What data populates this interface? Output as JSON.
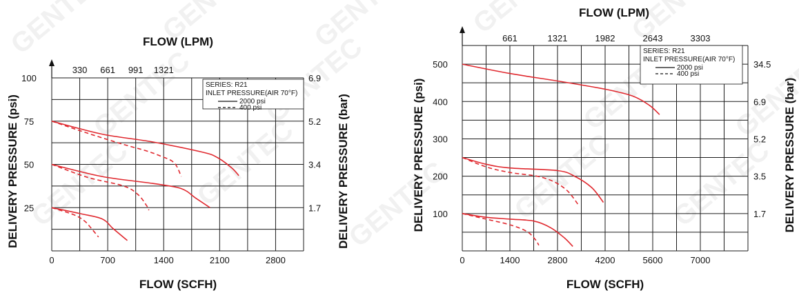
{
  "watermark": "GENTEC",
  "chart_data": [
    {
      "type": "line",
      "title": "FLOW (LPM)",
      "xlabel": "FLOW (SCFH)",
      "ylabel": "DELIVERY PRESSURE (psi)",
      "ylabel_right": "DELIVERY PRESSURE (bar)",
      "xlim": [
        0,
        3500
      ],
      "ylim": [
        0,
        100
      ],
      "grid": true,
      "x_ticks": [
        "0",
        "700",
        "1400",
        "2100",
        "2800"
      ],
      "y_ticks": [
        "25",
        "50",
        "75",
        "100"
      ],
      "top_ticks": [
        "330",
        "661",
        "991",
        "1321"
      ],
      "right_ticks": [
        "1.7",
        "3.4",
        "5.2",
        "6.9"
      ],
      "legend": {
        "series": "SERIES: R21",
        "inlet": "INLET PRESSURE(AIR 70°F)",
        "entries": [
          "2000 psi",
          "400 psi"
        ],
        "placement": "top-right"
      },
      "series": [
        {
          "name": "2000 psi",
          "style": "solid",
          "color": "#e0282e",
          "points": [
            [
              0,
              75
            ],
            [
              700,
              67.5
            ],
            [
              1400,
              63
            ],
            [
              2100,
              57
            ],
            [
              2300,
              54
            ],
            [
              2500,
              48
            ],
            [
              2600,
              43.5
            ]
          ]
        },
        {
          "name": "400 psi",
          "style": "dashed",
          "color": "#e0282e",
          "points": [
            [
              0,
              75
            ],
            [
              500,
              68
            ],
            [
              1000,
              61.5
            ],
            [
              1300,
              58
            ],
            [
              1500,
              55
            ],
            [
              1700,
              51
            ],
            [
              1800,
              43
            ]
          ]
        },
        {
          "name": "2000 psi",
          "style": "solid",
          "color": "#e0282e",
          "points": [
            [
              0,
              50
            ],
            [
              700,
              43
            ],
            [
              1400,
              39
            ],
            [
              1800,
              36
            ],
            [
              2000,
              30.5
            ],
            [
              2200,
              25
            ]
          ]
        },
        {
          "name": "400 psi",
          "style": "dashed",
          "color": "#e0282e",
          "points": [
            [
              0,
              50
            ],
            [
              500,
              42.5
            ],
            [
              1000,
              37.5
            ],
            [
              1200,
              32.5
            ],
            [
              1320,
              26
            ],
            [
              1350,
              23.5
            ]
          ]
        },
        {
          "name": "2000 psi",
          "style": "solid",
          "color": "#e0282e",
          "points": [
            [
              0,
              25
            ],
            [
              400,
              21.5
            ],
            [
              700,
              18.5
            ],
            [
              850,
              13
            ],
            [
              1050,
              6
            ]
          ]
        },
        {
          "name": "400 psi",
          "style": "dashed",
          "color": "#e0282e",
          "points": [
            [
              0,
              25
            ],
            [
              300,
              21
            ],
            [
              450,
              17.5
            ],
            [
              550,
              13
            ],
            [
              650,
              8
            ]
          ]
        }
      ]
    },
    {
      "type": "line",
      "title": "FLOW (LPM)",
      "xlabel": "FLOW (SCFH)",
      "ylabel": "DELIVERY PRESSURE (psi)",
      "ylabel_right": "DELIVERY PRESSURE (bar)",
      "xlim": [
        0,
        8400
      ],
      "ylim": [
        0,
        550
      ],
      "grid": true,
      "x_ticks": [
        "0",
        "1400",
        "2800",
        "4200",
        "5600",
        "7000"
      ],
      "y_ticks": [
        "100",
        "200",
        "300",
        "400",
        "500"
      ],
      "top_ticks": [
        "661",
        "1321",
        "1982",
        "2643",
        "3303"
      ],
      "right_ticks": [
        "1.7",
        "3.5",
        "5.2",
        "6.9",
        "34.5"
      ],
      "legend": {
        "series": "SERIES: R21",
        "inlet": "INLET PRESSURE(AIR 70°F)",
        "entries": [
          "2000 psi",
          "400 psi"
        ],
        "placement": "top-right"
      },
      "series": [
        {
          "name": "2000 psi",
          "style": "solid",
          "color": "#e0282e",
          "points": [
            [
              0,
              500
            ],
            [
              1400,
              475
            ],
            [
              2800,
              455
            ],
            [
              4200,
              433
            ],
            [
              5000,
              415
            ],
            [
              5500,
              390
            ],
            [
              5800,
              365
            ]
          ]
        },
        {
          "name": "2000 psi",
          "style": "solid",
          "color": "#e0282e",
          "points": [
            [
              0,
              250
            ],
            [
              700,
              232
            ],
            [
              1400,
              222
            ],
            [
              2800,
              215
            ],
            [
              3300,
              200
            ],
            [
              3800,
              170
            ],
            [
              4150,
              130
            ]
          ]
        },
        {
          "name": "400 psi",
          "style": "dashed",
          "color": "#e0282e",
          "points": [
            [
              0,
              250
            ],
            [
              700,
              225
            ],
            [
              1400,
              210
            ],
            [
              2200,
              200
            ],
            [
              2700,
              185
            ],
            [
              3100,
              160
            ],
            [
              3400,
              125
            ]
          ]
        },
        {
          "name": "2000 psi",
          "style": "solid",
          "color": "#e0282e",
          "points": [
            [
              0,
              100
            ],
            [
              700,
              90
            ],
            [
              1400,
              85
            ],
            [
              2100,
              80
            ],
            [
              2600,
              62
            ],
            [
              3000,
              35
            ],
            [
              3250,
              12
            ]
          ]
        },
        {
          "name": "400 psi",
          "style": "dashed",
          "color": "#e0282e",
          "points": [
            [
              0,
              100
            ],
            [
              700,
              85
            ],
            [
              1400,
              70
            ],
            [
              1900,
              52
            ],
            [
              2150,
              30
            ],
            [
              2250,
              15
            ]
          ]
        }
      ]
    }
  ]
}
